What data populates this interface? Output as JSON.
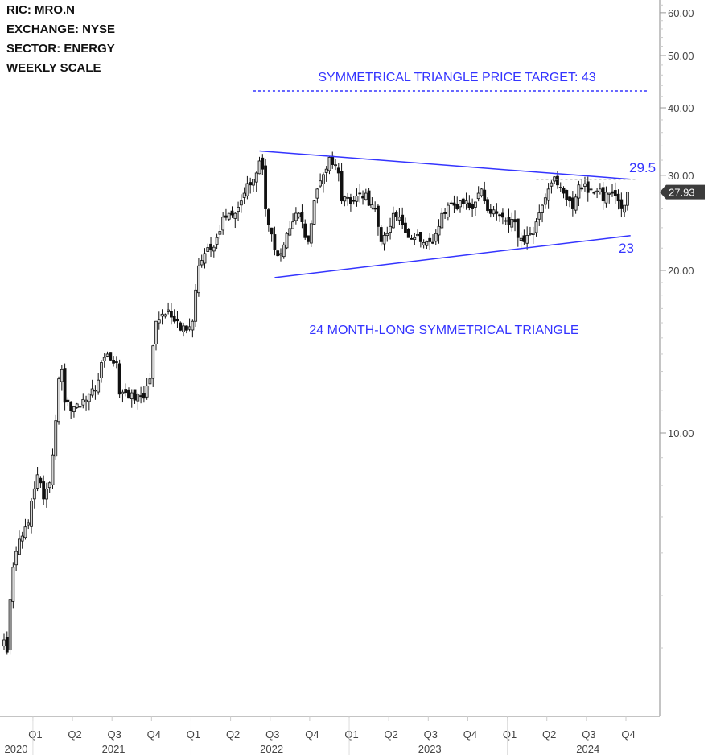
{
  "info": {
    "ric": "RIC:  MRO.N",
    "exchange": "EXCHANGE: NYSE",
    "sector": "SECTOR:  ENERGY",
    "scale": "WEEKLY SCALE"
  },
  "chart_data": {
    "type": "candlestick",
    "scale": "log",
    "ylim": [
      3.0,
      63
    ],
    "y_ticks": [
      {
        "value": 60,
        "label": "60.00"
      },
      {
        "value": 50,
        "label": "50.00"
      },
      {
        "value": 40,
        "label": "40.00"
      },
      {
        "value": 30,
        "label": "30.00"
      },
      {
        "value": 20,
        "label": "20.00"
      },
      {
        "value": 10,
        "label": "10.00"
      }
    ],
    "minor_ticks": [
      4,
      5,
      6,
      7,
      8,
      9,
      11,
      12,
      13,
      14,
      15,
      16,
      17,
      18,
      19,
      22,
      24,
      26,
      28,
      32,
      34,
      36,
      38,
      42,
      44,
      46,
      48,
      52,
      54,
      56,
      58,
      62
    ],
    "last_price": "27.93",
    "quarters": [
      {
        "label": "Q1",
        "week": 9.5
      },
      {
        "label": "Q2",
        "week": 22.5
      },
      {
        "label": "Q3",
        "week": 35.5
      },
      {
        "label": "Q4",
        "week": 48.5
      },
      {
        "label": "Q1",
        "week": 61.5
      },
      {
        "label": "Q2",
        "week": 74.5
      },
      {
        "label": "Q3",
        "week": 87.5
      },
      {
        "label": "Q4",
        "week": 100.5
      },
      {
        "label": "Q1",
        "week": 113.5
      },
      {
        "label": "Q2",
        "week": 126.5
      },
      {
        "label": "Q3",
        "week": 139.5
      },
      {
        "label": "Q4",
        "week": 152.5
      },
      {
        "label": "Q1",
        "week": 165.5
      },
      {
        "label": "Q2",
        "week": 178.5
      },
      {
        "label": "Q3",
        "week": 191.5
      },
      {
        "label": "Q4",
        "week": 204.5
      }
    ],
    "years": [
      {
        "label": "2020",
        "center_week": 2
      },
      {
        "label": "2021",
        "center_week": 36
      },
      {
        "label": "2022",
        "center_week": 88
      },
      {
        "label": "2023",
        "center_week": 140
      },
      {
        "label": "2024",
        "center_week": 192
      }
    ],
    "year_boundaries_week": [
      9.5,
      61.5,
      113.5,
      165.5
    ],
    "weeks": 206,
    "close_path": [
      [
        0,
        4.14
      ],
      [
        1,
        3.93
      ],
      [
        2,
        4.92
      ],
      [
        3,
        5.64
      ],
      [
        5,
        6.36
      ],
      [
        8,
        6.81
      ],
      [
        11,
        8.37
      ],
      [
        12,
        8.09
      ],
      [
        13,
        7.55
      ],
      [
        15,
        8.09
      ],
      [
        16,
        9.11
      ],
      [
        18,
        12.6
      ],
      [
        19,
        13.1
      ],
      [
        20,
        11.4
      ],
      [
        22,
        11.0
      ],
      [
        25,
        11.2
      ],
      [
        28,
        11.8
      ],
      [
        30,
        12.0
      ],
      [
        32,
        13.5
      ],
      [
        34,
        14.0
      ],
      [
        37,
        13.5
      ],
      [
        38,
        11.8
      ],
      [
        41,
        11.6
      ],
      [
        44,
        11.8
      ],
      [
        46,
        11.6
      ],
      [
        48,
        12.6
      ],
      [
        49,
        14.5
      ],
      [
        50,
        16.1
      ],
      [
        52,
        16.6
      ],
      [
        54,
        16.9
      ],
      [
        56,
        16.1
      ],
      [
        58,
        15.5
      ],
      [
        60,
        15.5
      ],
      [
        62,
        16.1
      ],
      [
        63,
        18.4
      ],
      [
        64,
        20.4
      ],
      [
        66,
        21.5
      ],
      [
        68,
        21.9
      ],
      [
        70,
        23.0
      ],
      [
        72,
        25.1
      ],
      [
        74,
        25.5
      ],
      [
        76,
        25.5
      ],
      [
        78,
        26.9
      ],
      [
        79,
        27.8
      ],
      [
        81,
        28.8
      ],
      [
        83,
        30.3
      ],
      [
        84,
        31.9
      ],
      [
        85,
        30.8
      ],
      [
        86,
        26.0
      ],
      [
        87,
        24.3
      ],
      [
        89,
        21.9
      ],
      [
        90,
        21.3
      ],
      [
        92,
        22.3
      ],
      [
        93,
        23.4
      ],
      [
        95,
        24.6
      ],
      [
        97,
        25.5
      ],
      [
        99,
        23.0
      ],
      [
        100,
        22.6
      ],
      [
        102,
        26.9
      ],
      [
        103,
        28.3
      ],
      [
        104,
        29.3
      ],
      [
        106,
        30.8
      ],
      [
        107,
        32.4
      ],
      [
        108,
        31.4
      ],
      [
        110,
        30.3
      ],
      [
        111,
        26.9
      ],
      [
        113,
        27.3
      ],
      [
        115,
        26.9
      ],
      [
        117,
        27.8
      ],
      [
        119,
        27.8
      ],
      [
        120,
        26.4
      ],
      [
        122,
        26.0
      ],
      [
        124,
        22.6
      ],
      [
        126,
        23.4
      ],
      [
        128,
        25.5
      ],
      [
        130,
        25.1
      ],
      [
        131,
        24.3
      ],
      [
        133,
        23.0
      ],
      [
        135,
        23.0
      ],
      [
        137,
        22.6
      ],
      [
        139,
        22.6
      ],
      [
        140,
        22.6
      ],
      [
        142,
        23.4
      ],
      [
        144,
        25.5
      ],
      [
        146,
        26.4
      ],
      [
        148,
        26.4
      ],
      [
        150,
        26.9
      ],
      [
        152,
        26.9
      ],
      [
        154,
        26.0
      ],
      [
        156,
        27.8
      ],
      [
        157,
        28.3
      ],
      [
        158,
        26.9
      ],
      [
        160,
        25.5
      ],
      [
        162,
        25.5
      ],
      [
        164,
        25.1
      ],
      [
        166,
        24.3
      ],
      [
        168,
        24.6
      ],
      [
        169,
        23.0
      ],
      [
        171,
        22.6
      ],
      [
        173,
        23.4
      ],
      [
        175,
        24.6
      ],
      [
        177,
        26.4
      ],
      [
        179,
        28.3
      ],
      [
        181,
        29.8
      ],
      [
        182,
        28.8
      ],
      [
        184,
        27.8
      ],
      [
        186,
        26.9
      ],
      [
        187,
        26.0
      ],
      [
        189,
        28.8
      ],
      [
        190,
        28.3
      ],
      [
        193,
        28.3
      ],
      [
        194,
        27.8
      ],
      [
        196,
        28.3
      ],
      [
        197,
        26.9
      ],
      [
        199,
        27.8
      ],
      [
        200,
        27.8
      ],
      [
        202,
        26.9
      ],
      [
        204,
        26.4
      ],
      [
        205,
        27.93
      ]
    ],
    "lines": {
      "upper_trendline": {
        "from": [
          84,
          33.3
        ],
        "to": [
          206,
          29.5
        ]
      },
      "lower_trendline": {
        "from": [
          89,
          19.4
        ],
        "to": [
          206,
          23.2
        ]
      },
      "target_line": {
        "from": [
          82,
          43
        ],
        "to": [
          212
        ],
        "value": 43
      },
      "resistance_dotted": {
        "from": [
          175,
          29.5
        ],
        "to": [
          208,
          29.5
        ]
      }
    },
    "annotations": {
      "target": "SYMMETRICAL TRIANGLE PRICE TARGET: 43",
      "pattern": "24 MONTH-LONG SYMMETRICAL TRIANGLE",
      "upper_level": "29.5",
      "lower_level": "23"
    },
    "colors": {
      "annotation": "#3434ff",
      "up_fill": "#d4d4d4",
      "down_fill": "#111111",
      "tag_bg": "#3c3c3c"
    }
  }
}
